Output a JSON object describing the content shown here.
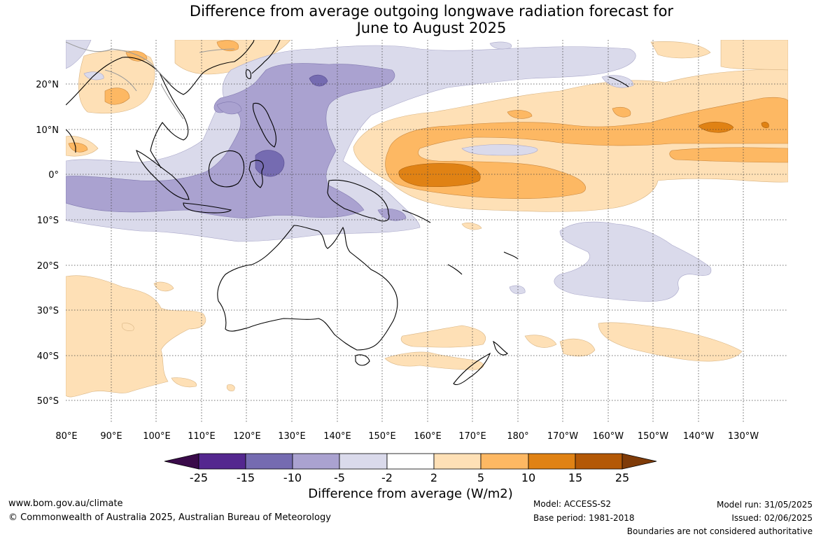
{
  "title": {
    "line1": "Difference from average outgoing longwave radiation forecast for",
    "line2": "June to August 2025"
  },
  "map": {
    "lon_labels": [
      "80°E",
      "90°E",
      "100°E",
      "110°E",
      "120°E",
      "130°E",
      "140°E",
      "150°E",
      "160°E",
      "170°E",
      "180°",
      "170°W",
      "160°W",
      "150°W",
      "140°W",
      "130°W"
    ],
    "lat_labels": [
      "20°N",
      "10°N",
      "0°",
      "10°S",
      "20°S",
      "30°S",
      "40°S",
      "50°S"
    ],
    "projection": "equirectangular",
    "lon_range": [
      80,
      242
    ],
    "lat_range": [
      -55,
      30
    ]
  },
  "legend": {
    "title": "Difference from average (W/m2)",
    "tick_labels": [
      "-25",
      "-15",
      "-10",
      "-5",
      "-2",
      "2",
      "5",
      "10",
      "15",
      "25"
    ],
    "colors": {
      "below_-25": "#3a0b4a",
      "-25_to_-15": "#54278f",
      "-15_to_-10": "#756bb1",
      "-10_to_-5": "#aaa2d0",
      "-5_to_-2": "#dadaeb",
      "-2_to_2": "#ffffff",
      "2_to_5": "#fee0b6",
      "5_to_10": "#fdb863",
      "10_to_15": "#e08214",
      "15_to_25": "#b35806",
      "above_25": "#7f3b08"
    }
  },
  "footer": {
    "website": "www.bom.gov.au/climate",
    "copyright": "© Commonwealth of Australia 2025, Australian Bureau of Meteorology",
    "model": "Model: ACCESS-S2",
    "base_period": "Base period: 1981-2018",
    "model_run": "Model run: 31/05/2025",
    "issued": "Issued: 02/06/2025",
    "disclaimer": "Boundaries are not considered authoritative"
  }
}
